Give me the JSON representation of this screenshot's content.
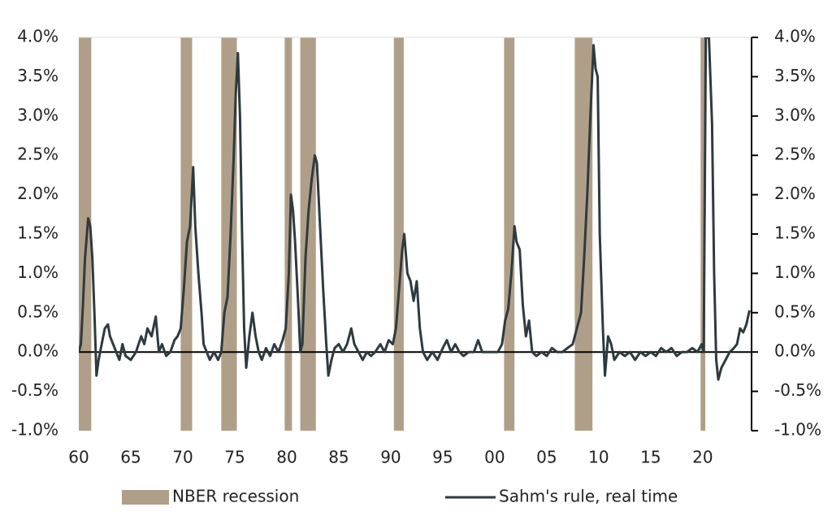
{
  "chart_data": {
    "type": "line",
    "x": [
      1960.0,
      1960.2,
      1960.4,
      1960.6,
      1960.9,
      1961.1,
      1961.3,
      1961.5,
      1961.7,
      1961.9,
      1962.2,
      1962.5,
      1962.8,
      1963.0,
      1963.3,
      1963.6,
      1963.9,
      1964.2,
      1964.5,
      1965.0,
      1965.5,
      1966.0,
      1966.3,
      1966.6,
      1967.0,
      1967.4,
      1967.7,
      1968.0,
      1968.4,
      1968.8,
      1969.2,
      1969.5,
      1969.8,
      1970.1,
      1970.4,
      1970.7,
      1971.0,
      1971.2,
      1971.5,
      1971.8,
      1972.0,
      1972.3,
      1972.6,
      1973.0,
      1973.4,
      1973.7,
      1974.0,
      1974.3,
      1974.6,
      1974.9,
      1975.1,
      1975.3,
      1975.5,
      1975.7,
      1975.9,
      1976.1,
      1976.4,
      1976.7,
      1977.0,
      1977.3,
      1977.6,
      1978.0,
      1978.4,
      1978.8,
      1979.2,
      1979.6,
      1979.9,
      1980.2,
      1980.4,
      1980.6,
      1980.8,
      1981.1,
      1981.3,
      1981.5,
      1981.8,
      1982.1,
      1982.4,
      1982.7,
      1982.9,
      1983.2,
      1983.5,
      1983.8,
      1984.0,
      1984.3,
      1984.6,
      1985.0,
      1985.4,
      1985.8,
      1986.2,
      1986.5,
      1986.9,
      1987.3,
      1987.7,
      1988.1,
      1988.5,
      1989.0,
      1989.4,
      1989.8,
      1990.2,
      1990.5,
      1990.8,
      1991.1,
      1991.3,
      1991.6,
      1991.9,
      1992.2,
      1992.5,
      1992.8,
      1993.1,
      1993.5,
      1994.0,
      1994.5,
      1995.0,
      1995.4,
      1995.8,
      1996.2,
      1996.6,
      1997.0,
      1997.5,
      1998.0,
      1998.4,
      1998.8,
      1999.3,
      1999.8,
      2000.3,
      2000.7,
      2001.0,
      2001.3,
      2001.6,
      2001.9,
      2002.1,
      2002.4,
      2002.7,
      2003.0,
      2003.3,
      2003.6,
      2004.0,
      2004.5,
      2005.0,
      2005.5,
      2006.0,
      2006.5,
      2007.0,
      2007.5,
      2007.9,
      2008.3,
      2008.6,
      2008.9,
      2009.2,
      2009.5,
      2009.7,
      2009.9,
      2010.1,
      2010.4,
      2010.6,
      2010.9,
      2011.2,
      2011.5,
      2012.0,
      2012.5,
      2013.0,
      2013.5,
      2014.0,
      2014.5,
      2015.0,
      2015.5,
      2016.0,
      2016.5,
      2017.0,
      2017.5,
      2018.0,
      2018.5,
      2019.0,
      2019.5,
      2019.9,
      2020.1,
      2020.3,
      2020.6,
      2020.9,
      2021.1,
      2021.3,
      2021.5,
      2021.8,
      2022.2,
      2022.6,
      2023.0,
      2023.3,
      2023.6,
      2023.9,
      2024.2,
      2024.5
    ],
    "series": [
      {
        "name": "Sahm's rule, real time",
        "color": "#2e3a3f",
        "values": [
          0.0,
          0.1,
          0.6,
          1.2,
          1.7,
          1.6,
          1.2,
          0.5,
          -0.3,
          -0.1,
          0.1,
          0.3,
          0.35,
          0.2,
          0.1,
          0.0,
          -0.1,
          0.1,
          -0.05,
          -0.1,
          0.0,
          0.2,
          0.1,
          0.3,
          0.2,
          0.45,
          0.0,
          0.1,
          -0.05,
          0.0,
          0.15,
          0.2,
          0.3,
          0.8,
          1.4,
          1.6,
          2.35,
          1.6,
          1.0,
          0.5,
          0.1,
          0.0,
          -0.1,
          0.0,
          -0.1,
          0.0,
          0.5,
          0.7,
          1.5,
          2.5,
          3.3,
          3.8,
          3.0,
          1.5,
          0.3,
          -0.2,
          0.2,
          0.5,
          0.2,
          0.0,
          -0.1,
          0.05,
          -0.05,
          0.1,
          0.0,
          0.15,
          0.3,
          1.0,
          2.0,
          1.8,
          1.4,
          0.6,
          0.0,
          0.1,
          1.2,
          1.8,
          2.2,
          2.5,
          2.4,
          1.6,
          0.8,
          0.1,
          -0.3,
          -0.1,
          0.05,
          0.1,
          0.0,
          0.1,
          0.3,
          0.1,
          0.0,
          -0.1,
          0.0,
          -0.05,
          0.0,
          0.1,
          0.0,
          0.15,
          0.1,
          0.3,
          0.8,
          1.3,
          1.5,
          1.0,
          0.9,
          0.65,
          0.9,
          0.3,
          0.0,
          -0.1,
          0.0,
          -0.1,
          0.05,
          0.15,
          0.0,
          0.1,
          0.0,
          -0.05,
          0.0,
          0.0,
          0.15,
          0.0,
          0.0,
          0.0,
          0.0,
          0.1,
          0.4,
          0.55,
          1.0,
          1.6,
          1.4,
          1.3,
          0.6,
          0.2,
          0.4,
          0.0,
          -0.05,
          0.0,
          -0.05,
          0.05,
          0.0,
          0.0,
          0.05,
          0.1,
          0.3,
          0.5,
          1.2,
          2.0,
          3.0,
          3.9,
          3.6,
          3.5,
          1.5,
          0.3,
          -0.3,
          0.2,
          0.1,
          -0.1,
          0.0,
          -0.05,
          0.0,
          -0.1,
          0.0,
          -0.05,
          0.0,
          -0.05,
          0.05,
          0.0,
          0.05,
          -0.05,
          0.0,
          0.0,
          0.05,
          0.0,
          0.1,
          0.0,
          4.0,
          4.0,
          2.9,
          1.0,
          -0.1,
          -0.35,
          -0.2,
          -0.1,
          0.0,
          0.05,
          0.1,
          0.3,
          0.25,
          0.35,
          0.53
        ]
      },
      {
        "name": "NBER recession",
        "color": "#b09f88",
        "periods": [
          [
            1960.0,
            1961.2
          ],
          [
            1969.8,
            1970.9
          ],
          [
            1973.7,
            1975.2
          ],
          [
            1979.8,
            1980.5
          ],
          [
            1981.3,
            1982.8
          ],
          [
            1990.3,
            1991.25
          ],
          [
            2000.9,
            2001.9
          ],
          [
            2007.7,
            2009.4
          ],
          [
            2019.8,
            2020.25
          ]
        ]
      }
    ],
    "xlim": [
      1960,
      2024.7
    ],
    "xticks": [
      {
        "value": 1960,
        "label": "60"
      },
      {
        "value": 1965,
        "label": "65"
      },
      {
        "value": 1970,
        "label": "70"
      },
      {
        "value": 1975,
        "label": "75"
      },
      {
        "value": 1980,
        "label": "80"
      },
      {
        "value": 1985,
        "label": "85"
      },
      {
        "value": 1990,
        "label": "90"
      },
      {
        "value": 1995,
        "label": "95"
      },
      {
        "value": 2000,
        "label": "00"
      },
      {
        "value": 2005,
        "label": "05"
      },
      {
        "value": 2010,
        "label": "10"
      },
      {
        "value": 2015,
        "label": "15"
      },
      {
        "value": 2020,
        "label": "20"
      }
    ],
    "ylim": [
      -1,
      4
    ],
    "yticks": [
      {
        "value": -1,
        "label": "-1.0%"
      },
      {
        "value": -0.5,
        "label": "-0.5%"
      },
      {
        "value": 0,
        "label": "0.0%"
      },
      {
        "value": 0.5,
        "label": "0.5%"
      },
      {
        "value": 1,
        "label": "1.0%"
      },
      {
        "value": 1.5,
        "label": "1.5%"
      },
      {
        "value": 2,
        "label": "2.0%"
      },
      {
        "value": 2.5,
        "label": "2.5%"
      },
      {
        "value": 3,
        "label": "3.0%"
      },
      {
        "value": 3.5,
        "label": "3.5%"
      },
      {
        "value": 4,
        "label": "4.0%"
      }
    ],
    "y2lim": [
      -1,
      4
    ],
    "y2ticks": [
      {
        "value": -1,
        "label": "-1.0%"
      },
      {
        "value": -0.5,
        "label": "-0.5%"
      },
      {
        "value": 0,
        "label": "0.0%"
      },
      {
        "value": 0.5,
        "label": "0.5%"
      },
      {
        "value": 1,
        "label": "1.0%"
      },
      {
        "value": 1.5,
        "label": "1.5%"
      },
      {
        "value": 2,
        "label": "2.0%"
      },
      {
        "value": 2.5,
        "label": "2.5%"
      },
      {
        "value": 3,
        "label": "3.0%"
      },
      {
        "value": 3.5,
        "label": "3.5%"
      },
      {
        "value": 4,
        "label": "4.0%"
      }
    ],
    "legend": "bottom"
  }
}
